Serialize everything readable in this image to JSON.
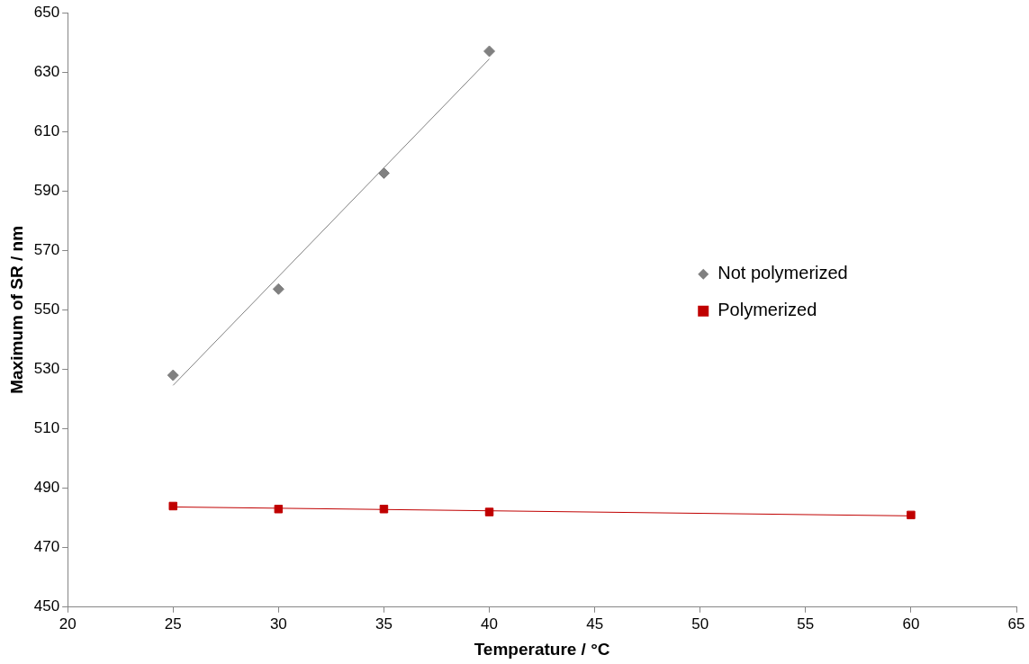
{
  "chart_data": {
    "type": "scatter",
    "xlabel": "Temperature / °C",
    "ylabel": "Maximum of SR / nm",
    "xlim": [
      20,
      65
    ],
    "xticks": [
      20,
      25,
      30,
      35,
      40,
      45,
      50,
      55,
      60,
      65
    ],
    "ylim": [
      450,
      650
    ],
    "yticks": [
      450,
      470,
      490,
      510,
      530,
      550,
      570,
      590,
      610,
      630,
      650
    ],
    "grid": false,
    "legend": "right",
    "series": [
      {
        "name": "Not polymerized",
        "color": "#808080",
        "marker": "diamond",
        "x": [
          25,
          30,
          35,
          40
        ],
        "values": [
          528,
          557,
          596,
          637
        ]
      },
      {
        "name": "Polymerized",
        "color": "#c00000",
        "marker": "square",
        "x": [
          25,
          30,
          35,
          40,
          60
        ],
        "values": [
          484,
          483,
          483,
          482,
          481
        ]
      },
      {
        "type": "line",
        "color": "#808080",
        "marker": "none",
        "x": [
          25,
          40
        ],
        "values": [
          524.6,
          634.4
        ]
      },
      {
        "type": "line",
        "color": "#c00000",
        "marker": "none",
        "x": [
          25,
          60
        ],
        "values": [
          483.7,
          480.7
        ]
      }
    ]
  }
}
